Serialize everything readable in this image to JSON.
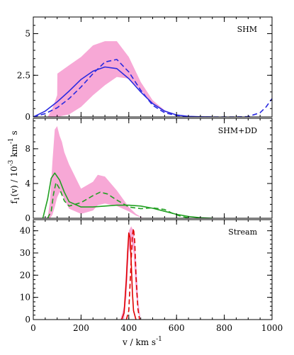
{
  "chart_data": {
    "type": "line",
    "xlabel": "v / km s",
    "xlabel_superscript": "-1",
    "ylabel_main": "f",
    "ylabel_sub": "1",
    "ylabel_rest": "(v) / 10",
    "ylabel_exp": "-3",
    "ylabel_unit": " km",
    "ylabel_unit_exp": "-1",
    "ylabel_tail": " s",
    "xlim": [
      0,
      1000
    ],
    "x_ticks": [
      0,
      200,
      400,
      600,
      800,
      1000
    ],
    "x_tick_labels": [
      "0",
      "200",
      "400",
      "600",
      "800",
      "1000"
    ],
    "colors": {
      "band": "#f7a8d6",
      "shm": "#2a2ae0",
      "dd": "#22a022",
      "stream": "#e00000"
    },
    "panels": [
      {
        "title": "SHM",
        "ylim": [
          0,
          6
        ],
        "y_ticks": [
          0,
          2.5,
          5
        ],
        "y_tick_labels": [
          "0",
          "2.5",
          "5"
        ],
        "band": {
          "x": [
            60,
            80,
            100,
            101,
            150,
            200,
            250,
            300,
            350,
            400,
            450,
            500,
            550,
            600,
            650,
            700
          ],
          "lower": [
            0,
            0,
            0,
            0,
            0.15,
            0.6,
            1.3,
            1.9,
            2.4,
            2.3,
            1.6,
            0.8,
            0.3,
            0.1,
            0,
            0
          ],
          "upper": [
            0,
            0.5,
            1.3,
            2.6,
            3.1,
            3.6,
            4.3,
            4.55,
            4.55,
            3.6,
            2.1,
            1.0,
            0.4,
            0.1,
            0,
            0
          ]
        },
        "series": [
          {
            "style": "solid",
            "color_key": "shm",
            "x": [
              0,
              50,
              100,
              150,
              200,
              250,
              300,
              350,
              400,
              450,
              500,
              550,
              600,
              650,
              700,
              750
            ],
            "y": [
              0,
              0.35,
              0.9,
              1.55,
              2.25,
              2.75,
              3.0,
              2.9,
              2.3,
              1.5,
              0.8,
              0.35,
              0.12,
              0.03,
              0.01,
              0
            ]
          },
          {
            "style": "dashed",
            "color_key": "shm",
            "x": [
              0,
              50,
              100,
              150,
              200,
              250,
              300,
              350,
              400,
              450,
              500,
              550,
              600,
              650,
              700,
              750,
              800,
              850,
              900,
              950,
              975,
              1000
            ],
            "y": [
              0,
              0.2,
              0.55,
              1.1,
              1.8,
              2.6,
              3.3,
              3.45,
              2.7,
              1.6,
              0.7,
              0.25,
              0.08,
              0.02,
              0,
              0,
              0,
              0,
              0.02,
              0.25,
              0.6,
              1.1
            ]
          }
        ]
      },
      {
        "title": "SHM+DD",
        "ylim": [
          0,
          11.5
        ],
        "y_ticks": [
          0,
          4,
          8
        ],
        "y_tick_labels": [
          "0",
          "4",
          "8"
        ],
        "band": {
          "x": [
            60,
            70,
            80,
            90,
            100,
            110,
            120,
            130,
            150,
            200,
            250,
            270,
            300,
            350,
            400,
            430,
            460
          ],
          "lower": [
            0,
            0,
            0.4,
            1.3,
            2.4,
            3.0,
            2.8,
            2.2,
            1.1,
            0.5,
            0.9,
            1.5,
            1.7,
            1.4,
            0.8,
            0.3,
            0
          ],
          "upper": [
            0,
            2.0,
            6.5,
            10.2,
            10.6,
            9.5,
            8.8,
            7.6,
            6.2,
            3.4,
            4.2,
            5.0,
            4.8,
            3.2,
            1.3,
            0.5,
            0
          ]
        },
        "series": [
          {
            "style": "solid",
            "color_key": "dd",
            "x": [
              40,
              60,
              75,
              90,
              110,
              130,
              150,
              200,
              250,
              300,
              350,
              400,
              450,
              500,
              550,
              600,
              650,
              700,
              750
            ],
            "y": [
              0,
              2.2,
              4.6,
              5.2,
              4.4,
              3.0,
              1.9,
              1.3,
              1.3,
              1.4,
              1.5,
              1.5,
              1.4,
              1.15,
              0.8,
              0.45,
              0.2,
              0.06,
              0
            ]
          },
          {
            "style": "dashed",
            "color_key": "dd",
            "x": [
              60,
              75,
              85,
              95,
              110,
              130,
              150,
              200,
              250,
              280,
              310,
              350,
              400,
              450,
              500,
              550,
              580,
              620,
              660
            ],
            "y": [
              0,
              0.8,
              2.8,
              4.1,
              3.4,
              2.0,
              1.4,
              1.8,
              2.6,
              3.0,
              2.8,
              2.1,
              1.3,
              1.1,
              1.2,
              1.0,
              0.6,
              0.2,
              0
            ]
          }
        ]
      },
      {
        "title": "Stream",
        "ylim": [
          0,
          45
        ],
        "y_ticks": [
          0,
          10,
          20,
          30,
          40
        ],
        "y_tick_labels": [
          "0",
          "10",
          "20",
          "30",
          "40"
        ],
        "band": {
          "x": [
            365,
            380,
            390,
            400,
            410,
            420,
            430,
            440,
            450
          ],
          "lower": [
            0,
            0,
            10,
            30,
            36,
            30,
            12,
            3,
            0
          ],
          "upper": [
            0,
            6,
            25,
            40,
            42,
            40,
            28,
            8,
            0
          ]
        },
        "series": [
          {
            "style": "solid",
            "color_key": "stream",
            "x": [
              370,
              380,
              390,
              395,
              400,
              405,
              410,
              415,
              420,
              430
            ],
            "y": [
              0,
              3,
              18,
              30,
              39,
              37,
              26,
              12,
              4,
              0
            ]
          },
          {
            "style": "dashed",
            "color_key": "stream",
            "x": [
              390,
              400,
              408,
              415,
              420,
              425,
              430,
              438,
              445
            ],
            "y": [
              0,
              4,
              22,
              38,
              41,
              35,
              20,
              5,
              0
            ]
          }
        ]
      }
    ]
  }
}
